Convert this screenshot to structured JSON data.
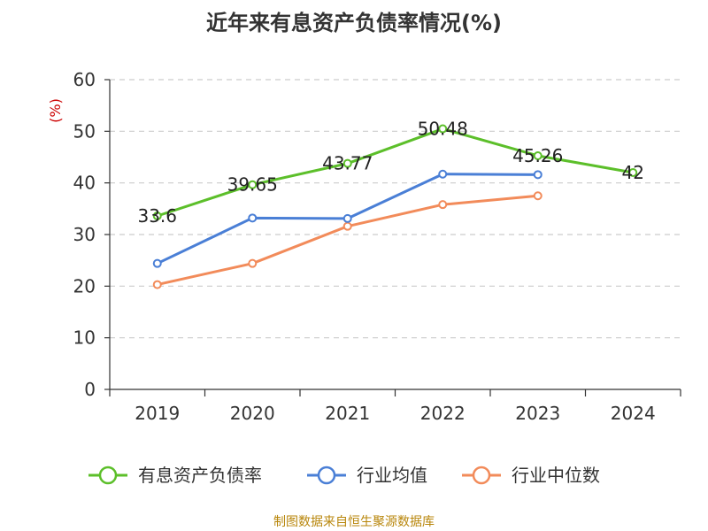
{
  "chart_data": {
    "type": "line",
    "title": "近年来有息资产负债率情况(%)",
    "ylabel": "(%)",
    "categories": [
      "2019",
      "2020",
      "2021",
      "2022",
      "2023",
      "2024"
    ],
    "ylim": [
      0,
      60
    ],
    "yticks": [
      0,
      10,
      20,
      30,
      40,
      50,
      60
    ],
    "grid": true,
    "legend_position": "bottom",
    "series": [
      {
        "name": "有息资产负债率",
        "color": "#5cbf2a",
        "values": [
          33.6,
          39.65,
          43.77,
          50.48,
          45.26,
          42
        ],
        "labels": [
          "33.6",
          "39.65",
          "43.77",
          "50.48",
          "45.26",
          "42"
        ]
      },
      {
        "name": "行业均值",
        "color": "#4a7fd6",
        "values": [
          24.4,
          33.2,
          33.1,
          41.7,
          41.6,
          null
        ]
      },
      {
        "name": "行业中位数",
        "color": "#f28b5a",
        "values": [
          20.3,
          24.4,
          31.6,
          35.8,
          37.5,
          null
        ]
      }
    ]
  },
  "source": "制图数据来自恒生聚源数据库"
}
